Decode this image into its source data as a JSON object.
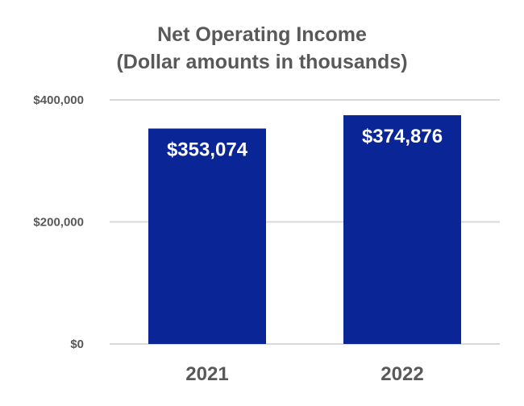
{
  "chart_data": {
    "type": "bar",
    "title_lines": [
      "Net Operating Income",
      "(Dollar amounts in thousands)"
    ],
    "categories": [
      "2021",
      "2022"
    ],
    "values": [
      353074,
      374876
    ],
    "data_labels": [
      "$353,074",
      "$374,876"
    ],
    "y_ticks": [
      0,
      200000,
      400000
    ],
    "y_tick_labels": [
      "$0",
      "$200,000",
      "$400,000"
    ],
    "ylim": [
      0,
      400000
    ],
    "xlabel": "",
    "ylabel": "",
    "grid": true,
    "legend": "none",
    "bar_color": "#0a2596",
    "grid_color": "#d9d9d9",
    "text_color": "#595959"
  }
}
